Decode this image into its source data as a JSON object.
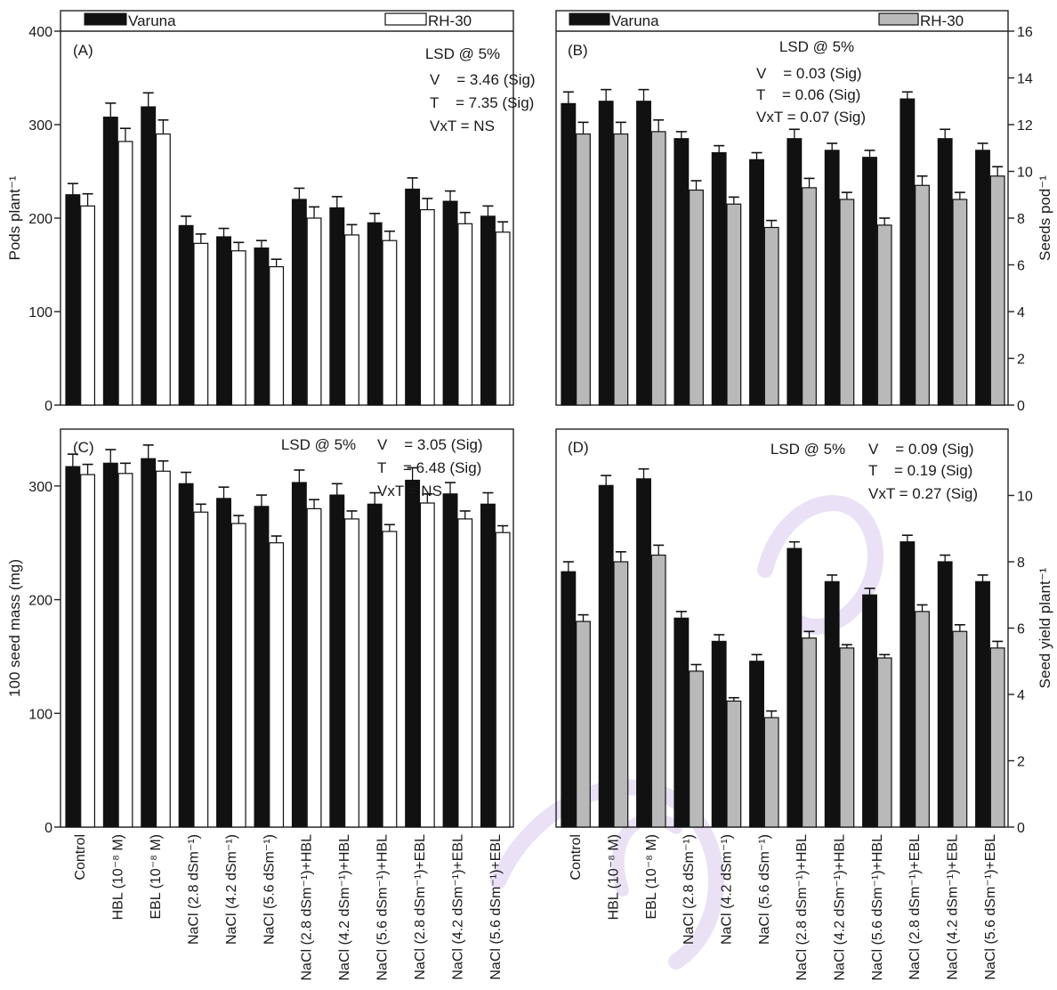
{
  "colors": {
    "varuna": "#111111",
    "rh30_open": "#ffffff",
    "rh30_grey": "#b9b9b9",
    "axis": "#222222",
    "watermark": "#d9c9ee"
  },
  "categories": [
    "Control",
    "HBL (10⁻⁸ M)",
    "EBL (10⁻⁸ M)",
    "NaCl (2.8 dSm⁻¹)",
    "NaCl (4.2 dSm⁻¹)",
    "NaCl (5.6 dSm⁻¹)",
    "NaCl (2.8 dSm⁻¹)+HBL",
    "NaCl (4.2 dSm⁻¹)+HBL",
    "NaCl (5.6 dSm⁻¹)+HBL",
    "NaCl (2.8 dSm⁻¹)+EBL",
    "NaCl (4.2 dSm⁻¹)+EBL",
    "NaCl (5.6 dSm⁻¹)+EBL"
  ],
  "chart_data": [
    {
      "type": "bar",
      "panel": "(A)",
      "ylabel": "Pods plant⁻¹",
      "yaxis_side": "left",
      "ylim": [
        0,
        400
      ],
      "yticks": [
        0,
        100,
        200,
        300,
        400
      ],
      "legend": [
        "Varuna",
        "RH-30"
      ],
      "annotations": [
        "LSD @ 5%",
        "V    = 3.46 (Sig)",
        "T    = 7.35 (Sig)",
        "VxT = NS"
      ],
      "series": [
        {
          "name": "Varuna",
          "values": [
            225,
            308,
            319,
            192,
            180,
            168,
            220,
            211,
            195,
            231,
            218,
            202
          ],
          "errors": [
            12,
            15,
            15,
            10,
            9,
            8,
            12,
            12,
            10,
            12,
            11,
            11
          ]
        },
        {
          "name": "RH-30",
          "values": [
            213,
            282,
            290,
            173,
            165,
            148,
            200,
            182,
            176,
            209,
            194,
            185
          ],
          "errors": [
            13,
            14,
            15,
            10,
            9,
            8,
            12,
            11,
            10,
            12,
            12,
            11
          ]
        }
      ]
    },
    {
      "type": "bar",
      "panel": "(B)",
      "ylabel": "Seeds pod⁻¹",
      "yaxis_side": "right",
      "ylim": [
        0,
        16
      ],
      "yticks": [
        0,
        2,
        4,
        6,
        8,
        10,
        12,
        14,
        16
      ],
      "legend": [
        "Varuna",
        "RH-30"
      ],
      "annotations": [
        "LSD @ 5%",
        "V    = 0.03 (Sig)",
        "T    = 0.06 (Sig)",
        "VxT = 0.07 (Sig)"
      ],
      "series": [
        {
          "name": "Varuna",
          "values": [
            12.9,
            13.0,
            13.0,
            11.4,
            10.8,
            10.5,
            11.4,
            10.9,
            10.6,
            13.1,
            11.4,
            10.9
          ],
          "errors": [
            0.5,
            0.5,
            0.5,
            0.3,
            0.3,
            0.3,
            0.4,
            0.3,
            0.3,
            0.3,
            0.4,
            0.3
          ]
        },
        {
          "name": "RH-30",
          "values": [
            11.6,
            11.6,
            11.7,
            9.2,
            8.6,
            7.6,
            9.3,
            8.8,
            7.7,
            9.4,
            8.8,
            9.8
          ],
          "errors": [
            0.5,
            0.5,
            0.5,
            0.4,
            0.3,
            0.3,
            0.4,
            0.3,
            0.3,
            0.4,
            0.3,
            0.4
          ]
        }
      ]
    },
    {
      "type": "bar",
      "panel": "(C)",
      "ylabel": "100 seed mass (mg)",
      "yaxis_side": "left",
      "ylim": [
        0,
        350
      ],
      "yticks": [
        0,
        100,
        200,
        300
      ],
      "annotations": [
        "LSD @ 5%",
        "V    = 3.05 (Sig)",
        "T    = 6.48 (Sig)",
        "VxT = NS"
      ],
      "series": [
        {
          "name": "Varuna",
          "values": [
            317,
            320,
            324,
            302,
            289,
            282,
            303,
            292,
            284,
            305,
            293,
            284
          ],
          "errors": [
            11,
            12,
            12,
            10,
            10,
            10,
            11,
            10,
            10,
            11,
            10,
            10
          ]
        },
        {
          "name": "RH-30",
          "values": [
            310,
            311,
            313,
            277,
            267,
            250,
            280,
            271,
            260,
            285,
            271,
            259
          ],
          "errors": [
            9,
            9,
            9,
            7,
            7,
            6,
            8,
            7,
            6,
            8,
            7,
            6
          ]
        }
      ]
    },
    {
      "type": "bar",
      "panel": "(D)",
      "ylabel": "Seed yield plant⁻¹",
      "yaxis_side": "right",
      "ylim": [
        0,
        12
      ],
      "yticks": [
        0,
        2,
        4,
        6,
        8,
        10
      ],
      "annotations": [
        "LSD @ 5%",
        "V    = 0.09 (Sig)",
        "T    = 0.19 (Sig)",
        "VxT = 0.27 (Sig)"
      ],
      "series": [
        {
          "name": "Varuna",
          "values": [
            7.7,
            10.3,
            10.5,
            6.3,
            5.6,
            5.0,
            8.4,
            7.4,
            7.0,
            8.6,
            8.0,
            7.4
          ],
          "errors": [
            0.3,
            0.3,
            0.3,
            0.2,
            0.2,
            0.2,
            0.2,
            0.2,
            0.2,
            0.2,
            0.2,
            0.2
          ]
        },
        {
          "name": "RH-30",
          "values": [
            6.2,
            8.0,
            8.2,
            4.7,
            3.8,
            3.3,
            5.7,
            5.4,
            5.1,
            6.5,
            5.9,
            5.4
          ],
          "errors": [
            0.2,
            0.3,
            0.3,
            0.2,
            0.1,
            0.2,
            0.2,
            0.1,
            0.1,
            0.2,
            0.2,
            0.2
          ]
        }
      ]
    }
  ]
}
